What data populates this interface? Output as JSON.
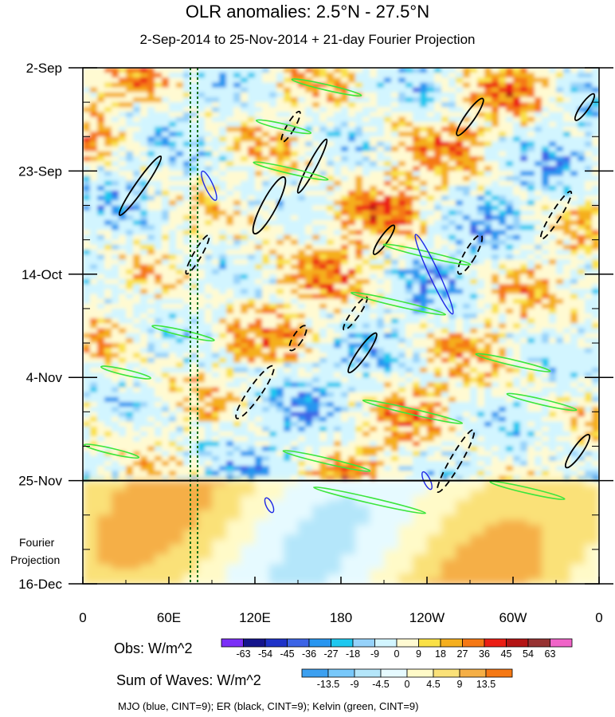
{
  "title": "OLR anomalies: 2.5°N - 27.5°N",
  "subtitle": "2-Sep-2014 to 25-Nov-2014 + 21-day Fourier Projection",
  "projection_label_line1": "Fourier",
  "projection_label_line2": "Projection",
  "obs_colorbar_label": "Obs: W/m^2",
  "sum_colorbar_label": "Sum of Waves: W/m^2",
  "footnote": "MJO (blue, CINT=9); ER (black, CINT=9); Kelvin (green, CINT=9)",
  "chart_data": {
    "type": "heatmap",
    "title": "OLR anomalies: 2.5°N - 27.5°N",
    "subtitle": "2-Sep-2014 to 25-Nov-2014 + 21-day Fourier Projection",
    "x_axis": {
      "ticks": [
        "0",
        "60E",
        "120E",
        "180",
        "120W",
        "60W",
        "0"
      ],
      "tick_values": [
        0,
        60,
        120,
        180,
        240,
        300,
        360
      ],
      "range": [
        0,
        360
      ]
    },
    "y_axis": {
      "ticks": [
        "2-Sep",
        "23-Sep",
        "14-Oct",
        "4-Nov",
        "25-Nov",
        "16-Dec"
      ],
      "tick_days": [
        0,
        21,
        42,
        63,
        84,
        105
      ],
      "range_days": [
        0,
        105
      ],
      "orientation": "time increases downward"
    },
    "observation_end_day": 84,
    "reference_longitudes": [
      75,
      80
    ],
    "obs_colorbar": {
      "label": "Obs: W/m^2",
      "levels": [
        "-63",
        "-54",
        "-45",
        "-36",
        "-27",
        "-18",
        "-9",
        "0",
        "9",
        "18",
        "27",
        "36",
        "45",
        "54",
        "63"
      ],
      "colors": [
        "#7b2ff7",
        "#14148c",
        "#1e32c8",
        "#3c64e6",
        "#2896f0",
        "#1ec8f0",
        "#96d2fa",
        "#d2f5ff",
        "#fffad2",
        "#fae146",
        "#f5af1e",
        "#f57814",
        "#eb1e14",
        "#b41414",
        "#963232",
        "#f064c8"
      ]
    },
    "sum_colorbar": {
      "label": "Sum of Waves: W/m^2",
      "levels": [
        "-13.5",
        "-9",
        "-4.5",
        "0",
        "4.5",
        "9",
        "13.5"
      ],
      "colors": [
        "#3ca0f0",
        "#78c8fa",
        "#b4e6fa",
        "#e6faff",
        "#fffac8",
        "#fae178",
        "#f5af46",
        "#f57814"
      ]
    },
    "wave_contours": [
      {
        "name": "MJO",
        "color": "blue",
        "cint": 9
      },
      {
        "name": "ER",
        "color": "black",
        "cint": 9
      },
      {
        "name": "Kelvin",
        "color": "green",
        "cint": 9
      }
    ]
  }
}
